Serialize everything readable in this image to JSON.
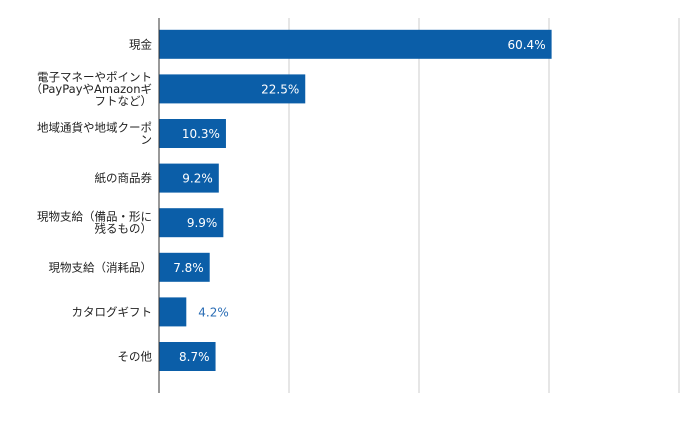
{
  "chart_data": {
    "type": "bar",
    "orientation": "horizontal",
    "categories": [
      [
        "現金"
      ],
      [
        "電子マネーやポイント",
        "（PayPayやAmazonギ",
        "フトなど）"
      ],
      [
        "地域通貨や地域クーポ",
        "ン"
      ],
      [
        "紙の商品券"
      ],
      [
        "現物支給（備品・形に",
        "残るもの）"
      ],
      [
        "現物支給（消耗品）"
      ],
      [
        "カタログギフト"
      ],
      [
        "その他"
      ]
    ],
    "values": [
      60.4,
      22.5,
      10.3,
      9.2,
      9.9,
      7.8,
      4.2,
      8.7
    ],
    "value_labels": [
      "60.4%",
      "22.5%",
      "10.3%",
      "9.2%",
      "9.9%",
      "7.8%",
      "4.2%",
      "8.7%"
    ],
    "xlim": [
      0,
      80
    ],
    "grid": true,
    "title": "",
    "xlabel": "",
    "ylabel": "",
    "colors": {
      "bar": "#0b5ea8",
      "label_inside": "#ffffff",
      "label_outside": "#2a6db5",
      "category_text": "#222222",
      "grid": "#cccccc",
      "axis": "#333333"
    }
  }
}
